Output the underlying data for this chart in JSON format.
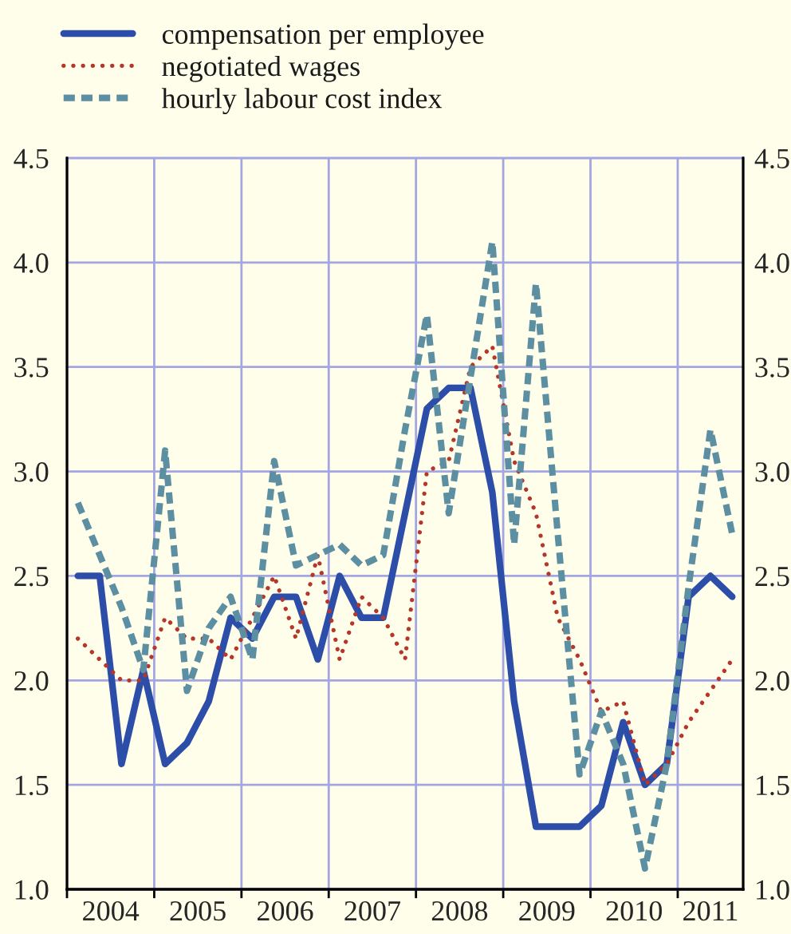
{
  "chart_data": {
    "type": "line",
    "x": [
      2004.125,
      2004.375,
      2004.625,
      2004.875,
      2005.125,
      2005.375,
      2005.625,
      2005.875,
      2006.125,
      2006.375,
      2006.625,
      2006.875,
      2007.125,
      2007.375,
      2007.625,
      2007.875,
      2008.125,
      2008.375,
      2008.625,
      2008.875,
      2009.125,
      2009.375,
      2009.625,
      2009.875,
      2010.125,
      2010.375,
      2010.625,
      2010.875,
      2011.125,
      2011.375,
      2011.625
    ],
    "series": [
      {
        "name": "compensation per employee",
        "color": "#2d4ea8",
        "line_style": "solid",
        "values": [
          2.5,
          2.5,
          1.6,
          2.05,
          1.6,
          1.7,
          1.9,
          2.3,
          2.2,
          2.4,
          2.4,
          2.1,
          2.5,
          2.3,
          2.3,
          2.8,
          3.3,
          3.4,
          3.4,
          2.9,
          1.9,
          1.3,
          1.3,
          1.3,
          1.4,
          1.8,
          1.5,
          1.6,
          2.4,
          2.5,
          2.4
        ]
      },
      {
        "name": "negotiated wages",
        "color": "#b5372c",
        "line_style": "dotted",
        "values": [
          2.2,
          2.1,
          2.0,
          2.0,
          2.3,
          2.2,
          2.2,
          2.1,
          2.3,
          2.5,
          2.2,
          2.6,
          2.1,
          2.4,
          2.3,
          2.1,
          3.0,
          3.05,
          3.5,
          3.6,
          3.05,
          2.8,
          2.3,
          2.1,
          1.85,
          1.9,
          1.5,
          1.6,
          1.8,
          1.95,
          2.1
        ]
      },
      {
        "name": "hourly labour cost index",
        "color": "#5d8fa2",
        "line_style": "dashed",
        "values": [
          2.85,
          2.6,
          2.35,
          2.05,
          3.1,
          1.95,
          2.25,
          2.4,
          2.1,
          3.05,
          2.55,
          2.6,
          2.65,
          2.55,
          2.6,
          3.2,
          3.75,
          2.8,
          3.45,
          4.1,
          2.65,
          3.9,
          2.7,
          1.55,
          1.85,
          1.6,
          1.1,
          1.6,
          2.45,
          3.2,
          2.7
        ]
      }
    ],
    "xlim": [
      2004,
      2011.75
    ],
    "xticks": [
      {
        "value": 2004,
        "label": null
      },
      {
        "value": 2004.5,
        "label": "2004"
      },
      {
        "value": 2005,
        "label": null
      },
      {
        "value": 2005.5,
        "label": "2005"
      },
      {
        "value": 2006,
        "label": null
      },
      {
        "value": 2006.5,
        "label": "2006"
      },
      {
        "value": 2007,
        "label": null
      },
      {
        "value": 2007.5,
        "label": "2007"
      },
      {
        "value": 2008,
        "label": null
      },
      {
        "value": 2008.5,
        "label": "2008"
      },
      {
        "value": 2009,
        "label": null
      },
      {
        "value": 2009.5,
        "label": "2009"
      },
      {
        "value": 2010,
        "label": null
      },
      {
        "value": 2010.5,
        "label": "2010"
      },
      {
        "value": 2011,
        "label": null
      },
      {
        "value": 2011.375,
        "label": "2011"
      }
    ],
    "ylim": [
      1,
      4.5
    ],
    "yticks": [
      {
        "value": 1,
        "label": "1.0"
      },
      1.5,
      {
        "value": 2,
        "label": "2.0"
      },
      2.5,
      {
        "value": 3,
        "label": "3.0"
      },
      3.5,
      {
        "value": 4,
        "label": "4.0"
      },
      4.5
    ],
    "y2lim": [
      1,
      4.5
    ],
    "y2ticks": [
      {
        "value": 1,
        "label": "1.0"
      },
      1.5,
      {
        "value": 2,
        "label": "2.0"
      },
      2.5,
      {
        "value": 3,
        "label": "3.0"
      },
      3.5,
      {
        "value": 4,
        "label": "4.0"
      },
      4.5
    ],
    "grid": true,
    "legend": "top left"
  }
}
